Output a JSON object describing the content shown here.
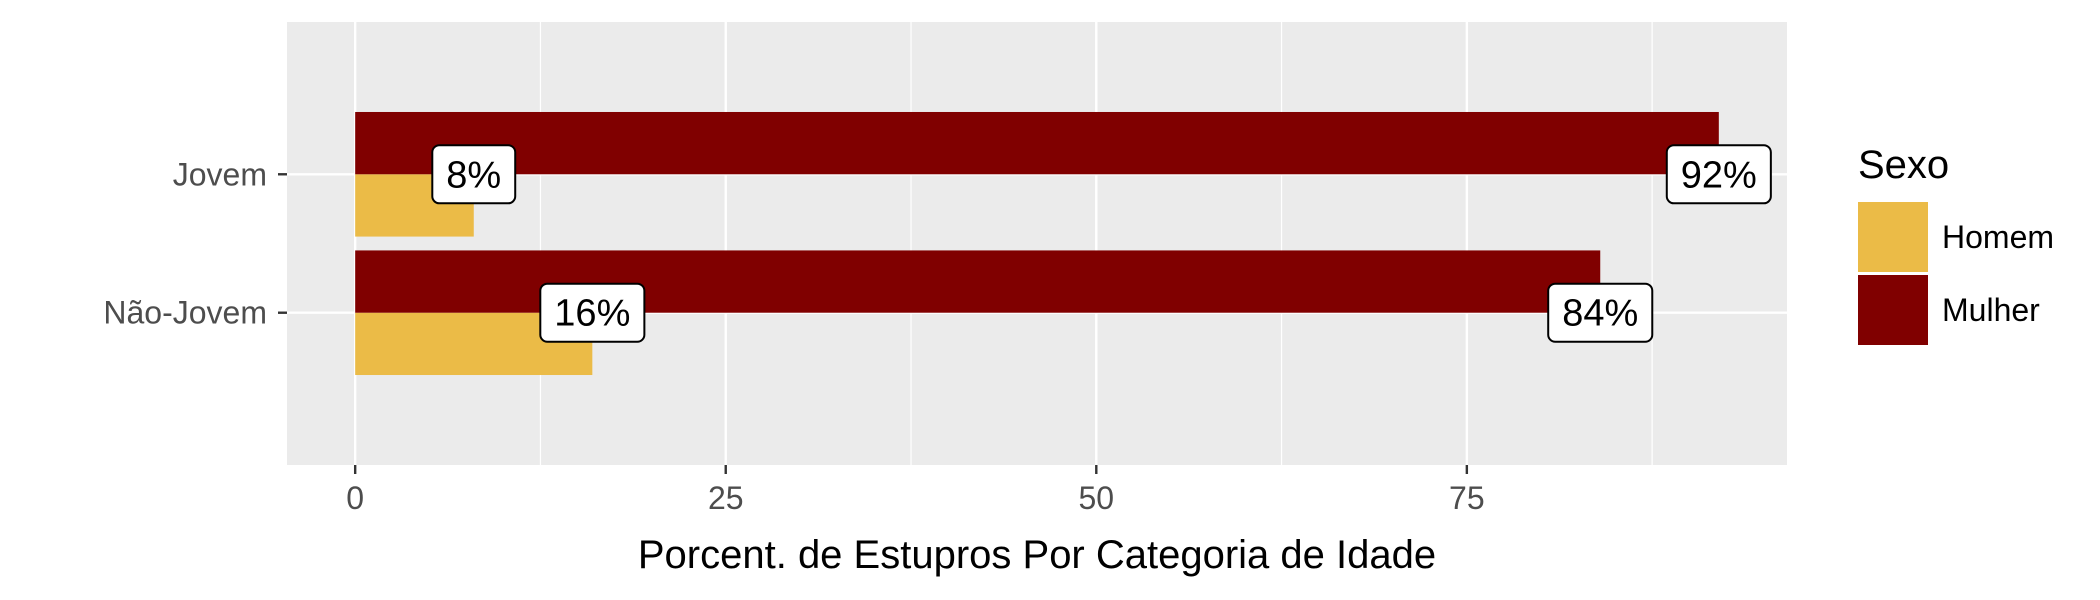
{
  "chart_data": {
    "type": "bar",
    "orientation": "horizontal",
    "categories": [
      "Jovem",
      "Não-Jovem"
    ],
    "series": [
      {
        "name": "Homem",
        "color": "#EBBB47",
        "values": [
          8,
          16
        ],
        "labels": [
          "8%",
          "16%"
        ]
      },
      {
        "name": "Mulher",
        "color": "#800000",
        "values": [
          92,
          84
        ],
        "labels": [
          "92%",
          "84%"
        ]
      }
    ],
    "xlabel": "Porcent. de Estupros Por Categoria de Idade",
    "ylabel": "",
    "xticks": [
      0,
      25,
      50,
      75
    ],
    "xtick_labels": [
      "0",
      "25",
      "50",
      "75"
    ],
    "xlim": [
      -4.6,
      96.6
    ],
    "grid": true,
    "panel_background": "#EBEBEB",
    "legend": {
      "title": "Sexo",
      "position": "right"
    }
  }
}
